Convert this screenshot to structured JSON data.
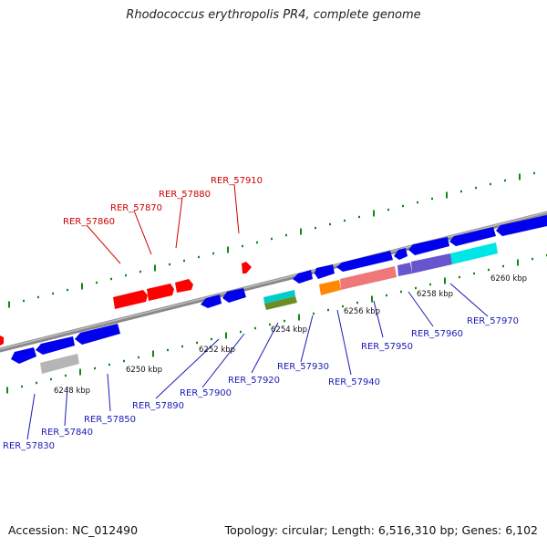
{
  "title": "Rhodococcus erythropolis PR4, complete genome",
  "footer": {
    "accession": "Accession: NC_012490",
    "summary": "Topology: circular; Length: 6,516,310 bp; Genes: 6,102"
  },
  "colors": {
    "forward_gene": "#ff0000",
    "reverse_gene": "#0000ee",
    "backbone": "#8a8a8a",
    "tick": "#118811",
    "forward_label": "#cc0000",
    "reverse_label": "#1a1ab8"
  },
  "kbp_labels": [
    "6248 kbp",
    "6250 kbp",
    "6252 kbp",
    "6254 kbp",
    "6256 kbp",
    "6258 kbp",
    "6260 kbp"
  ],
  "forward_genes": [
    {
      "name": "RER_57860",
      "color": "#ff0000"
    },
    {
      "name": "RER_57870",
      "color": "#ff0000"
    },
    {
      "name": "RER_57880",
      "color": "#ff0000"
    },
    {
      "name": "RER_57910",
      "color": "#ff0000"
    }
  ],
  "reverse_genes": [
    {
      "name": "RER_57830",
      "color": "#0000ee"
    },
    {
      "name": "RER_57840",
      "color": "#0000ee"
    },
    {
      "name": "RER_57850",
      "color": "#0000ee"
    },
    {
      "name": "RER_57890",
      "color": "#0000ee"
    },
    {
      "name": "RER_57900",
      "color": "#0000ee"
    },
    {
      "name": "RER_57920",
      "color": "#00cccc"
    },
    {
      "name": "RER_57930",
      "color": "#0000ee"
    },
    {
      "name": "RER_57940",
      "color": "#ff8800"
    },
    {
      "name": "RER_57950",
      "color": "#ee7777"
    },
    {
      "name": "RER_57960",
      "color": "#6655cc"
    },
    {
      "name": "RER_57970",
      "color": "#00e5e5"
    }
  ]
}
